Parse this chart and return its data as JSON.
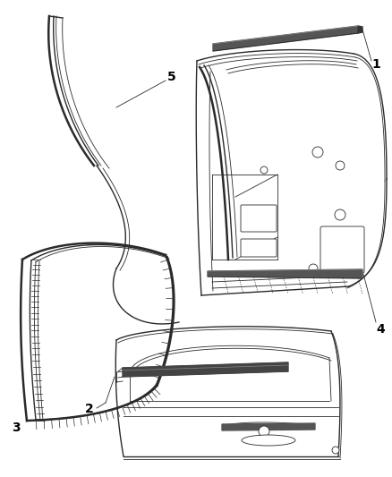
{
  "background_color": "#ffffff",
  "line_color": "#2a2a2a",
  "label_color": "#000000",
  "fig_width": 4.38,
  "fig_height": 5.33,
  "dpi": 100,
  "label_fontsize": 10,
  "lw_thin": 0.6,
  "lw_med": 1.0,
  "lw_thick": 1.8
}
